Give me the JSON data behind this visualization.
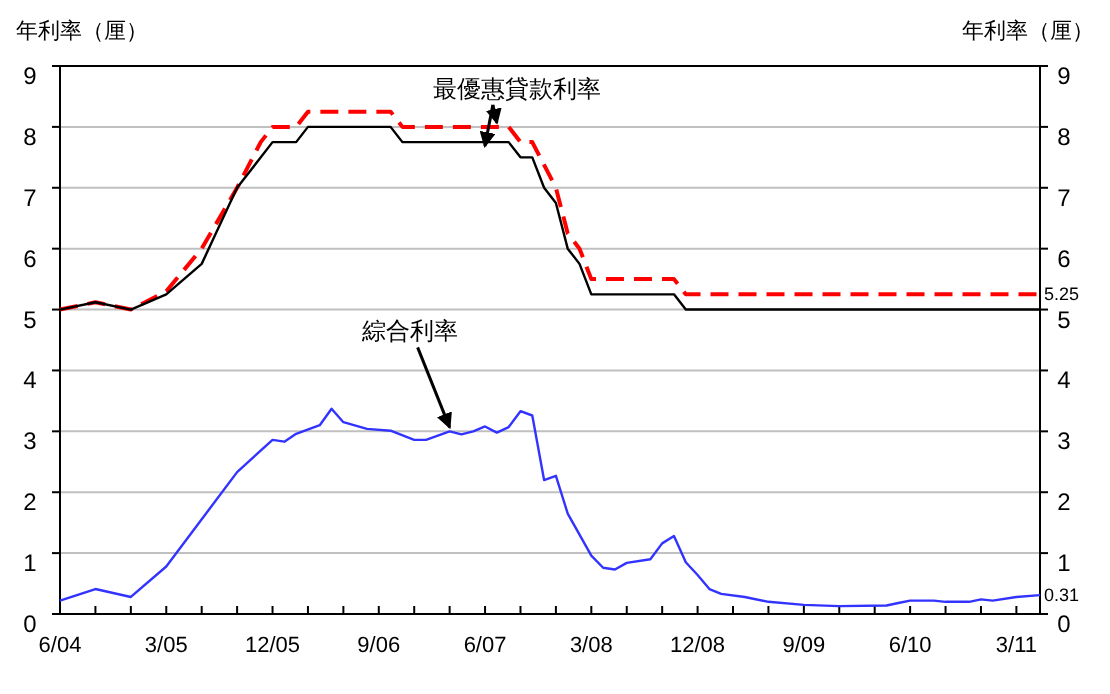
{
  "chart_data": {
    "type": "line",
    "ylabel": "年利率（厘）",
    "y2label": "年利率（厘）",
    "xlim": [
      "2004-06",
      "2011-05"
    ],
    "xticks": [
      {
        "value": "2004-06",
        "label": "6/04"
      },
      {
        "value": "2004-09",
        "label": null
      },
      {
        "value": "2004-12",
        "label": null
      },
      {
        "value": "2005-03",
        "label": "3/05"
      },
      {
        "value": "2005-06",
        "label": null
      },
      {
        "value": "2005-09",
        "label": null
      },
      {
        "value": "2005-12",
        "label": "12/05"
      },
      {
        "value": "2006-03",
        "label": null
      },
      {
        "value": "2006-06",
        "label": null
      },
      {
        "value": "2006-09",
        "label": "9/06"
      },
      {
        "value": "2006-12",
        "label": null
      },
      {
        "value": "2007-03",
        "label": null
      },
      {
        "value": "2007-06",
        "label": "6/07"
      },
      {
        "value": "2007-09",
        "label": null
      },
      {
        "value": "2007-12",
        "label": null
      },
      {
        "value": "2008-03",
        "label": "3/08"
      },
      {
        "value": "2008-06",
        "label": null
      },
      {
        "value": "2008-09",
        "label": null
      },
      {
        "value": "2008-12",
        "label": "12/08"
      },
      {
        "value": "2009-03",
        "label": null
      },
      {
        "value": "2009-06",
        "label": null
      },
      {
        "value": "2009-09",
        "label": "9/09"
      },
      {
        "value": "2009-12",
        "label": null
      },
      {
        "value": "2010-03",
        "label": null
      },
      {
        "value": "2010-06",
        "label": "6/10"
      },
      {
        "value": "2010-09",
        "label": null
      },
      {
        "value": "2010-12",
        "label": null
      },
      {
        "value": "2011-03",
        "label": "3/11"
      }
    ],
    "ylim": [
      0,
      9
    ],
    "yticks": [
      0,
      1,
      2,
      3,
      4,
      5,
      6,
      7,
      8,
      9
    ],
    "y2lim": [
      0,
      9
    ],
    "y2ticks": [
      0,
      1,
      2,
      3,
      4,
      5,
      6,
      7,
      8,
      9
    ],
    "grid": "y",
    "series": [
      {
        "color": "#ff0000",
        "line_style": "dashed",
        "x": [
          "2004-06",
          "2004-09",
          "2004-12",
          "2005-03",
          "2005-06",
          "2005-09",
          "2005-11",
          "2005-12",
          "2006-02",
          "2006-03",
          "2006-10",
          "2006-11",
          "2007-08",
          "2007-09",
          "2007-10",
          "2007-12",
          "2008-01",
          "2008-02",
          "2008-03",
          "2008-10",
          "2008-11",
          "2011-05"
        ],
        "values": [
          5.0,
          5.12,
          5.0,
          5.3,
          6.0,
          7.0,
          7.75,
          8.0,
          8.0,
          8.25,
          8.25,
          8.0,
          8.0,
          7.75,
          7.75,
          7.0,
          6.25,
          6.0,
          5.5,
          5.5,
          5.25,
          5.25
        ],
        "value_labels": [
          null,
          null,
          null,
          null,
          null,
          null,
          null,
          null,
          null,
          null,
          null,
          null,
          null,
          null,
          null,
          null,
          null,
          null,
          null,
          null,
          null,
          "5.25"
        ]
      },
      {
        "color": "#000000",
        "line_style": "solid",
        "x": [
          "2004-06",
          "2004-09",
          "2004-12",
          "2005-03",
          "2005-06",
          "2005-09",
          "2005-12",
          "2006-02",
          "2006-03",
          "2006-10",
          "2006-11",
          "2007-08",
          "2007-09",
          "2007-10",
          "2007-11",
          "2007-12",
          "2008-01",
          "2008-02",
          "2008-03",
          "2008-10",
          "2008-11",
          "2011-05"
        ],
        "values": [
          5.0,
          5.12,
          5.0,
          5.25,
          5.75,
          7.0,
          7.75,
          7.75,
          8.0,
          8.0,
          7.75,
          7.75,
          7.5,
          7.5,
          7.0,
          6.75,
          6.0,
          5.75,
          5.25,
          5.25,
          5.0,
          5.0
        ]
      },
      {
        "color": "#3333ff",
        "line_style": "solid",
        "x": [
          "2004-06",
          "2004-09",
          "2004-12",
          "2005-03",
          "2005-09",
          "2005-12",
          "2006-01",
          "2006-02",
          "2006-04",
          "2006-05",
          "2006-06",
          "2006-08",
          "2006-10",
          "2006-12",
          "2007-01",
          "2007-03",
          "2007-04",
          "2007-05",
          "2007-06",
          "2007-07",
          "2007-08",
          "2007-09",
          "2007-10",
          "2007-11",
          "2007-12",
          "2008-01",
          "2008-03",
          "2008-04",
          "2008-05",
          "2008-06",
          "2008-08",
          "2008-09",
          "2008-10",
          "2008-11",
          "2008-12",
          "2009-01",
          "2009-02",
          "2009-04",
          "2009-06",
          "2009-09",
          "2009-12",
          "2010-04",
          "2010-05",
          "2010-06",
          "2010-08",
          "2010-09",
          "2010-11",
          "2010-12",
          "2011-01",
          "2011-03",
          "2011-05"
        ],
        "values": [
          0.22,
          0.41,
          0.28,
          0.78,
          2.33,
          2.86,
          2.83,
          2.96,
          3.1,
          3.37,
          3.15,
          3.04,
          3.01,
          2.86,
          2.86,
          3.0,
          2.95,
          3.0,
          3.08,
          2.98,
          3.07,
          3.33,
          3.26,
          2.2,
          2.27,
          1.65,
          0.96,
          0.76,
          0.73,
          0.84,
          0.9,
          1.16,
          1.28,
          0.85,
          0.64,
          0.41,
          0.33,
          0.28,
          0.2,
          0.15,
          0.13,
          0.14,
          0.18,
          0.22,
          0.22,
          0.2,
          0.2,
          0.24,
          0.22,
          0.28,
          0.31
        ],
        "value_labels": [
          null,
          null,
          null,
          null,
          null,
          null,
          null,
          null,
          null,
          null,
          null,
          null,
          null,
          null,
          null,
          null,
          null,
          null,
          null,
          null,
          null,
          null,
          null,
          null,
          null,
          null,
          null,
          null,
          null,
          null,
          null,
          null,
          null,
          null,
          null,
          null,
          null,
          null,
          null,
          null,
          null,
          null,
          null,
          null,
          null,
          null,
          null,
          null,
          null,
          null,
          "0.31"
        ]
      }
    ],
    "annotations": [
      {
        "text": "最優惠貸款利率",
        "x": "2007-07",
        "y": 8.0
      },
      {
        "text": "綜合利率",
        "x": "2007-03",
        "y": 3.0
      }
    ]
  }
}
